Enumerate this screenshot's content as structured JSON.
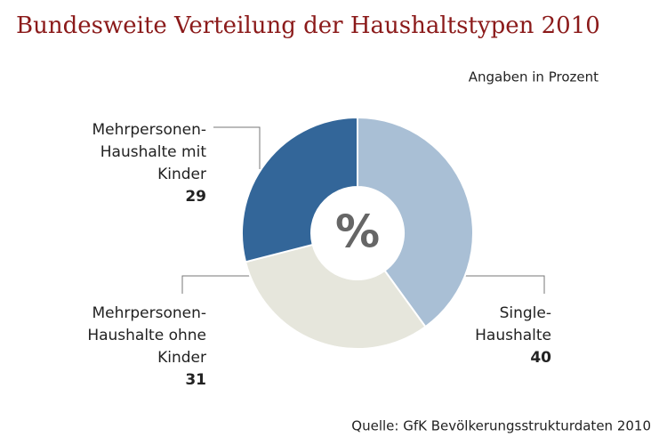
{
  "chart_data": {
    "type": "donut",
    "title": "Bundesweite Verteilung der Haushaltstypen 2010",
    "subtitle": "Angaben in Prozent",
    "source": "Quelle: GfK Bevölkerungsstrukturdaten 2010",
    "center_label": "%",
    "categories": [
      [
        "Single-",
        "Haushalte"
      ],
      [
        "Mehrpersonen-",
        "Haushalte ohne",
        "Kinder"
      ],
      [
        "Mehrpersonen-",
        "Haushalte mit",
        "Kinder"
      ]
    ],
    "values": [
      40,
      31,
      29
    ],
    "colors": [
      "#a9bfd5",
      "#e6e6dc",
      "#336699"
    ]
  }
}
